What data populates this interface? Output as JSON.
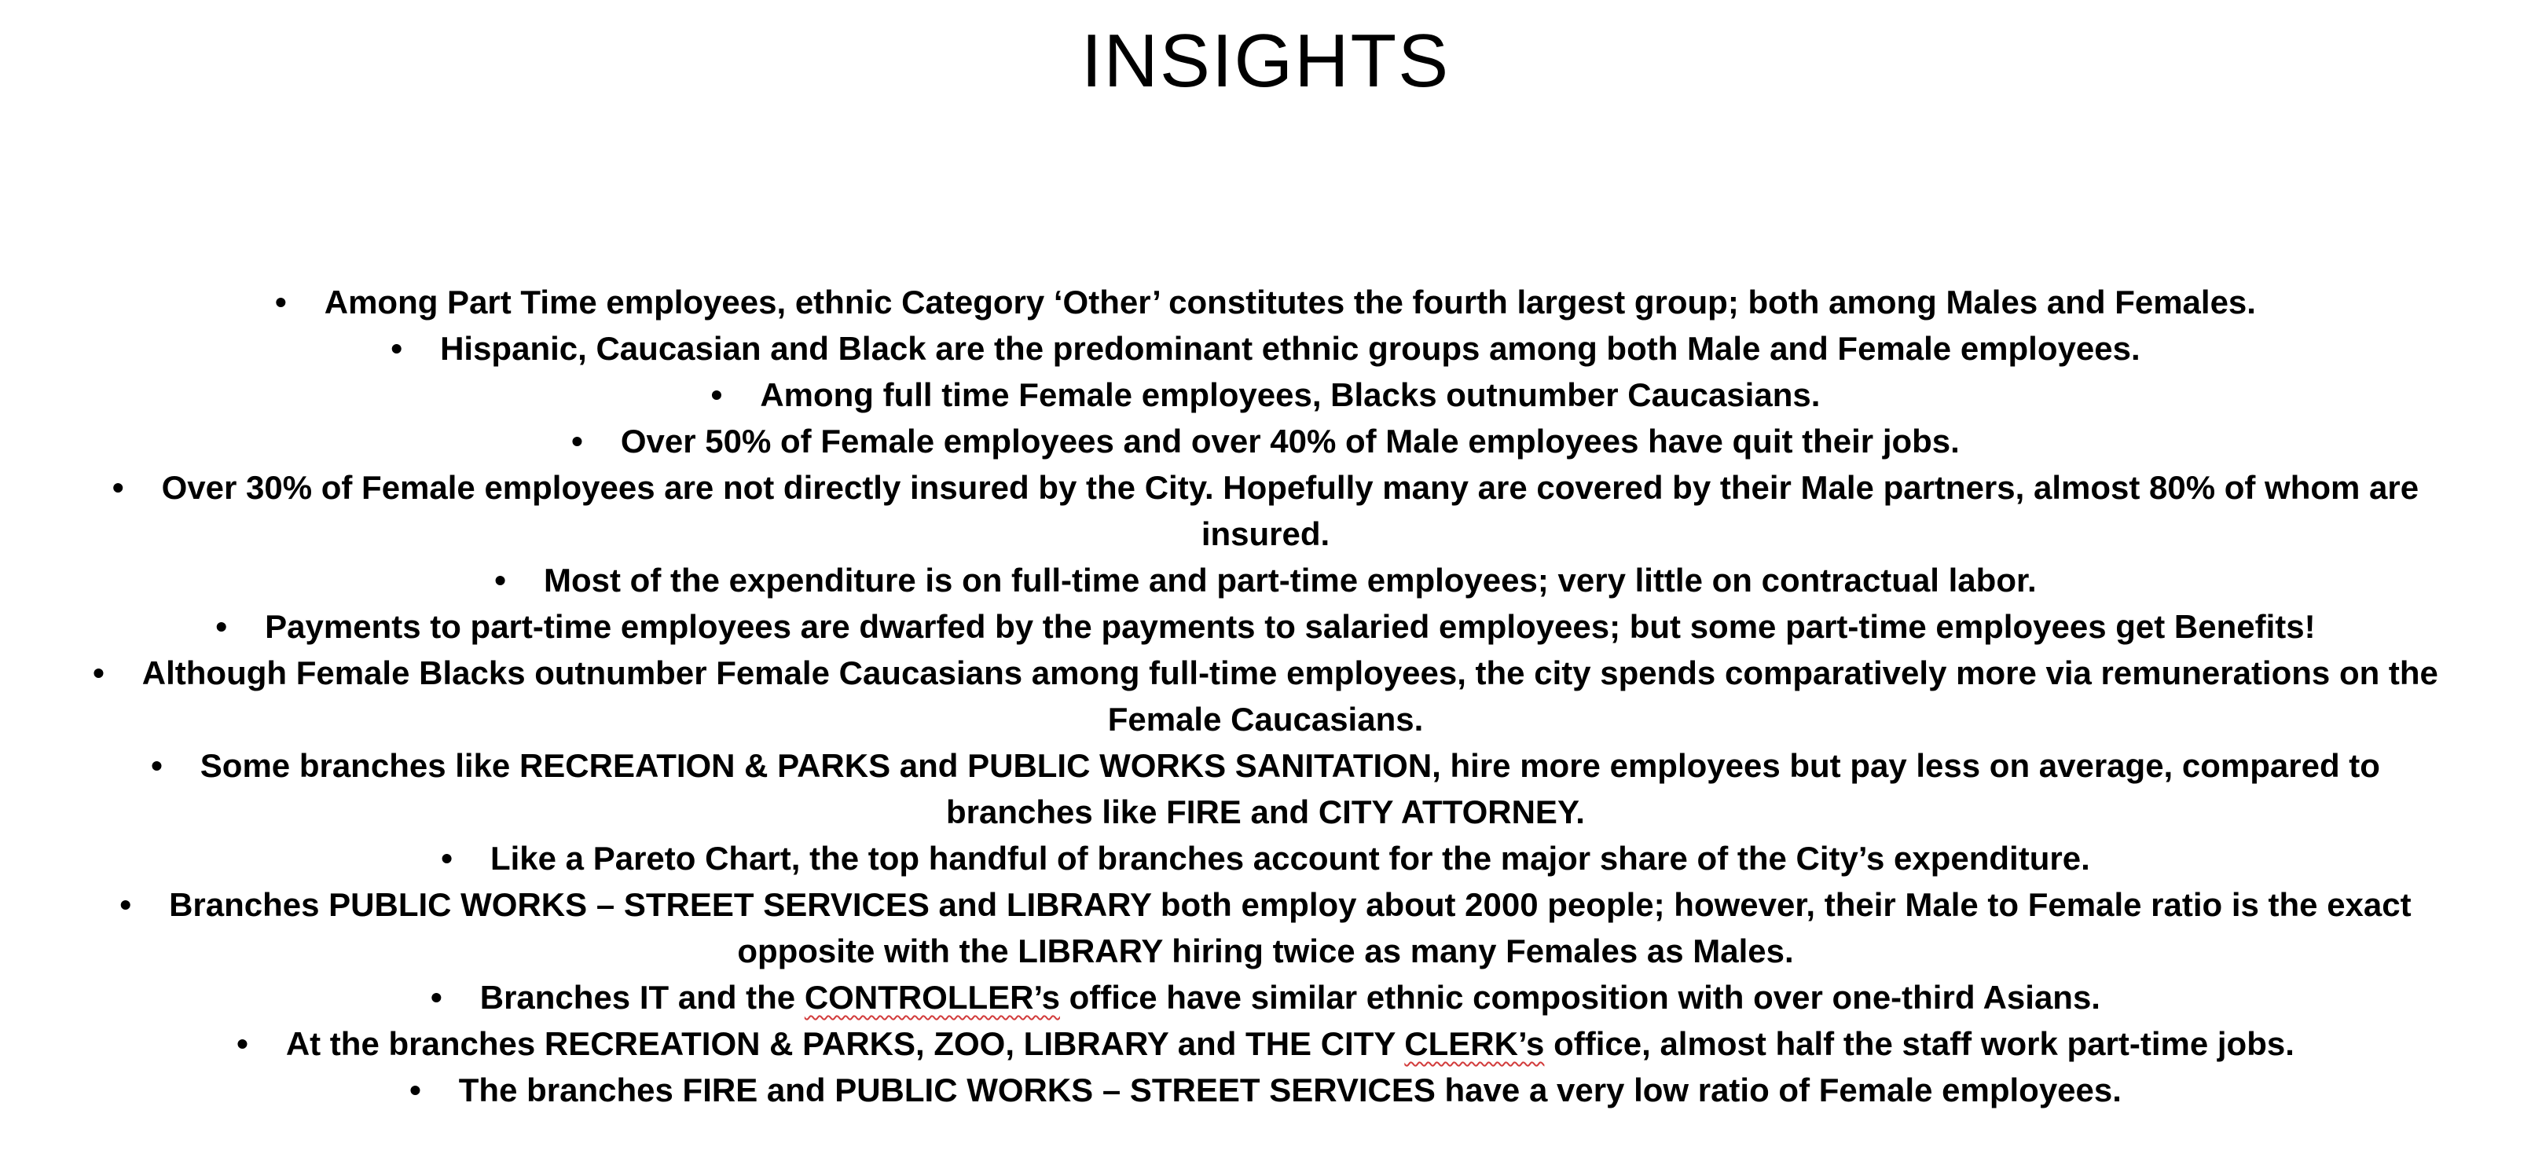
{
  "slide": {
    "title": "INSIGHTS",
    "bullet_glyph": "•",
    "insights": [
      {
        "text": "Among Part Time employees, ethnic Category ‘Other’ constitutes the fourth largest group; both among Males and Females."
      },
      {
        "text": "Hispanic, Caucasian and Black are the predominant ethnic groups among both Male and Female employees."
      },
      {
        "text": "Among full time Female employees, Blacks outnumber Caucasians."
      },
      {
        "text": "Over 50% of Female employees and over 40% of Male employees have quit their jobs."
      },
      {
        "text": "Over 30% of Female employees are not directly insured by the City. Hopefully many are covered by their Male partners, almost 80% of whom are insured."
      },
      {
        "text": "Most of the expenditure is on full-time and part-time employees; very little on contractual labor."
      },
      {
        "text": "Payments to part-time employees are dwarfed by the payments to salaried employees; but some part-time employees get Benefits!"
      },
      {
        "text": "Although Female Blacks outnumber Female Caucasians among full-time employees, the city spends comparatively more via remunerations on the Female Caucasians."
      },
      {
        "text": "Some branches like RECREATION & PARKS and PUBLIC WORKS SANITATION, hire more employees but pay less on average, compared to branches like FIRE and CITY ATTORNEY."
      },
      {
        "text": "Like a Pareto Chart, the top handful of branches account for the major share of the City’s expenditure."
      },
      {
        "text": "Branches PUBLIC WORKS – STREET SERVICES and LIBRARY both employ about 2000 people; however, their Male to Female ratio is the exact opposite with the LIBRARY hiring twice as many Females as Males."
      },
      {
        "before": "Branches IT and the ",
        "marked": "CONTROLLER’s",
        "after": " office have similar ethnic composition with over one-third Asians."
      },
      {
        "before": "At the branches RECREATION & PARKS, ZOO, LIBRARY and THE CITY ",
        "marked": "CLERK’s",
        "after": " office, almost half the staff work part-time jobs."
      },
      {
        "text": "The branches FIRE and PUBLIC WORKS – STREET SERVICES have a very low ratio of Female employees."
      }
    ]
  }
}
